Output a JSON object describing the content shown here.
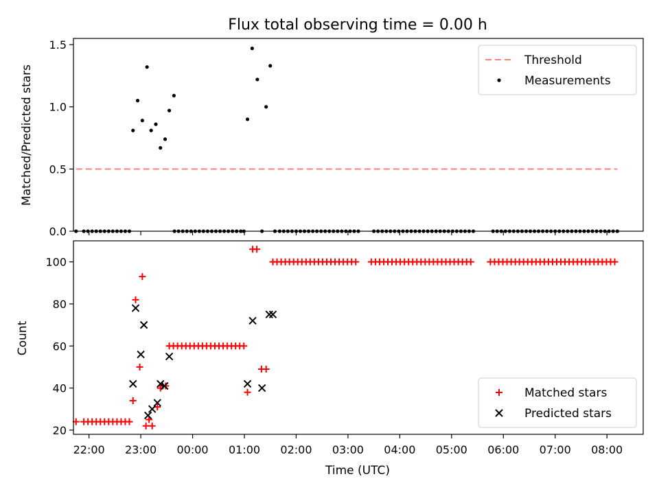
{
  "chart_data": [
    {
      "type": "scatter",
      "title": "Flux total observing time = 0.00 h",
      "xlabel": "",
      "ylabel": "Matched/Predicted stars",
      "ylim": [
        0,
        1.55
      ],
      "yticks": [
        0.0,
        0.5,
        1.0,
        1.5
      ],
      "ytick_labels": [
        "0.0",
        "0.5",
        "1.0",
        "1.5"
      ],
      "xlim": [
        -2.3,
        8.7
      ],
      "grid": false,
      "legend_position": "top-right",
      "legend": [
        {
          "label": "Threshold",
          "kind": "dashed-line",
          "color": "#ff7f7f"
        },
        {
          "label": "Measurements",
          "kind": "dot",
          "color": "#000000"
        }
      ],
      "threshold": {
        "value": 0.5,
        "x_start": -2.25,
        "x_end": 8.2,
        "color": "#ff7f7f"
      },
      "series": [
        {
          "name": "Measurements",
          "color": "#000000",
          "x": [
            -2.25,
            -2.1,
            -2.02,
            -1.94,
            -1.86,
            -1.78,
            -1.7,
            -1.62,
            -1.54,
            -1.46,
            -1.38,
            -1.3,
            -1.22,
            -1.15,
            -1.06,
            -0.97,
            -0.88,
            -0.8,
            -0.71,
            -0.62,
            -0.53,
            -0.45,
            -0.36,
            -0.35,
            -0.27,
            -0.19,
            -0.11,
            -0.03,
            0.05,
            0.13,
            0.21,
            0.29,
            0.37,
            0.45,
            0.53,
            0.61,
            0.69,
            0.77,
            0.85,
            0.93,
            0.99,
            1.06,
            1.15,
            1.25,
            1.34,
            1.42,
            1.5,
            1.59,
            1.68,
            1.76,
            1.84,
            1.92,
            2.0,
            2.08,
            2.16,
            2.24,
            2.32,
            2.4,
            2.48,
            2.56,
            2.64,
            2.72,
            2.8,
            2.88,
            2.96,
            3.04,
            3.12,
            3.2,
            3.5,
            3.58,
            3.66,
            3.74,
            3.82,
            3.9,
            3.98,
            4.06,
            4.14,
            4.22,
            4.3,
            4.38,
            4.46,
            4.54,
            4.62,
            4.7,
            4.78,
            4.86,
            4.94,
            5.02,
            5.1,
            5.18,
            5.26,
            5.34,
            5.42,
            5.8,
            5.88,
            5.96,
            6.04,
            6.12,
            6.2,
            6.28,
            6.36,
            6.44,
            6.52,
            6.6,
            6.68,
            6.76,
            6.84,
            6.92,
            7.0,
            7.08,
            7.16,
            7.24,
            7.32,
            7.4,
            7.48,
            7.56,
            7.64,
            7.72,
            7.8,
            7.88,
            7.96,
            8.04,
            8.12,
            8.2
          ],
          "y": [
            0,
            0,
            0,
            0,
            0,
            0,
            0,
            0,
            0,
            0,
            0,
            0,
            0,
            0.81,
            1.05,
            0.89,
            1.32,
            0.81,
            0.86,
            0.67,
            0.74,
            0.97,
            1.09,
            0,
            0,
            0,
            0,
            0,
            0,
            0,
            0,
            0,
            0,
            0,
            0,
            0,
            0,
            0,
            0,
            0,
            0,
            0.9,
            1.47,
            1.22,
            0,
            1.0,
            1.33,
            0,
            0,
            0,
            0,
            0,
            0,
            0,
            0,
            0,
            0,
            0,
            0,
            0,
            0,
            0,
            0,
            0,
            0,
            0,
            0,
            0,
            0,
            0,
            0,
            0,
            0,
            0,
            0,
            0,
            0,
            0,
            0,
            0,
            0,
            0,
            0,
            0,
            0,
            0,
            0,
            0,
            0,
            0,
            0,
            0,
            0,
            0,
            0,
            0,
            0,
            0,
            0,
            0,
            0,
            0,
            0,
            0,
            0,
            0,
            0,
            0,
            0,
            0,
            0,
            0,
            0,
            0,
            0,
            0,
            0,
            0,
            0,
            0,
            0,
            0,
            0,
            0
          ]
        }
      ]
    },
    {
      "type": "scatter",
      "xlabel": "Time (UTC)",
      "ylabel": "Count",
      "ylim": [
        18,
        110
      ],
      "yticks": [
        20,
        40,
        60,
        80,
        100
      ],
      "ytick_labels": [
        "20",
        "40",
        "60",
        "80",
        "100"
      ],
      "xlim": [
        -2.3,
        8.7
      ],
      "xticks": [
        -2,
        -1,
        0,
        1,
        2,
        3,
        4,
        5,
        6,
        7,
        8
      ],
      "xtick_labels": [
        "22:00",
        "23:00",
        "00:00",
        "01:00",
        "02:00",
        "03:00",
        "04:00",
        "05:00",
        "06:00",
        "07:00",
        "08:00"
      ],
      "grid": false,
      "legend_position": "bottom-right",
      "legend": [
        {
          "label": "Matched stars",
          "kind": "plus",
          "color": "#ff0000"
        },
        {
          "label": "Predicted stars",
          "kind": "x",
          "color": "#000000"
        }
      ],
      "series": [
        {
          "name": "Matched stars",
          "color": "#ff0000",
          "marker": "plus",
          "x": [
            -2.25,
            -2.1,
            -2.02,
            -1.94,
            -1.86,
            -1.78,
            -1.7,
            -1.62,
            -1.54,
            -1.46,
            -1.38,
            -1.3,
            -1.22,
            -1.15,
            -1.1,
            -1.02,
            -0.97,
            -0.9,
            -0.84,
            -0.78,
            -0.68,
            -0.62,
            -0.52,
            -0.58,
            -0.45,
            -0.37,
            -0.29,
            -0.21,
            -0.13,
            -0.05,
            0.03,
            0.11,
            0.19,
            0.27,
            0.35,
            0.43,
            0.51,
            0.59,
            0.67,
            0.75,
            0.83,
            0.91,
            0.99,
            1.06,
            1.16,
            1.24,
            1.33,
            1.42,
            1.55,
            1.63,
            1.71,
            1.79,
            1.87,
            1.95,
            2.03,
            2.11,
            2.19,
            2.27,
            2.35,
            2.43,
            2.51,
            2.59,
            2.67,
            2.75,
            2.83,
            2.91,
            2.99,
            3.07,
            3.15,
            3.45,
            3.53,
            3.61,
            3.69,
            3.77,
            3.85,
            3.93,
            4.01,
            4.09,
            4.17,
            4.25,
            4.33,
            4.41,
            4.49,
            4.57,
            4.65,
            4.73,
            4.81,
            4.89,
            4.97,
            5.05,
            5.13,
            5.21,
            5.29,
            5.37,
            5.75,
            5.83,
            5.91,
            5.99,
            6.07,
            6.15,
            6.23,
            6.31,
            6.39,
            6.47,
            6.55,
            6.63,
            6.71,
            6.79,
            6.87,
            6.95,
            7.03,
            7.11,
            7.19,
            7.27,
            7.35,
            7.43,
            7.51,
            7.59,
            7.67,
            7.75,
            7.83,
            7.91,
            7.99,
            8.07,
            8.15
          ],
          "y": [
            24,
            24,
            24,
            24,
            24,
            24,
            24,
            24,
            24,
            24,
            24,
            24,
            24,
            34,
            82,
            50,
            93,
            22,
            25,
            22,
            31,
            40,
            41,
            41,
            60,
            60,
            60,
            60,
            60,
            60,
            60,
            60,
            60,
            60,
            60,
            60,
            60,
            60,
            60,
            60,
            60,
            60,
            60,
            38,
            106,
            106,
            49,
            49,
            100,
            100,
            100,
            100,
            100,
            100,
            100,
            100,
            100,
            100,
            100,
            100,
            100,
            100,
            100,
            100,
            100,
            100,
            100,
            100,
            100,
            100,
            100,
            100,
            100,
            100,
            100,
            100,
            100,
            100,
            100,
            100,
            100,
            100,
            100,
            100,
            100,
            100,
            100,
            100,
            100,
            100,
            100,
            100,
            100,
            100,
            100,
            100,
            100,
            100,
            100,
            100,
            100,
            100,
            100,
            100,
            100,
            100,
            100,
            100,
            100,
            100,
            100,
            100,
            100,
            100,
            100,
            100,
            100,
            100,
            100,
            100,
            100,
            100,
            100,
            100,
            100
          ]
        },
        {
          "name": "Predicted stars",
          "color": "#000000",
          "marker": "x",
          "x": [
            -1.15,
            -1.1,
            -1.0,
            -0.94,
            -0.86,
            -0.78,
            -0.68,
            -0.62,
            -0.54,
            -0.45,
            1.06,
            1.16,
            1.34,
            1.48,
            1.55
          ],
          "y": [
            42,
            78,
            56,
            70,
            27,
            30,
            33,
            42,
            41,
            55,
            42,
            72,
            40,
            75,
            75
          ]
        }
      ]
    }
  ]
}
